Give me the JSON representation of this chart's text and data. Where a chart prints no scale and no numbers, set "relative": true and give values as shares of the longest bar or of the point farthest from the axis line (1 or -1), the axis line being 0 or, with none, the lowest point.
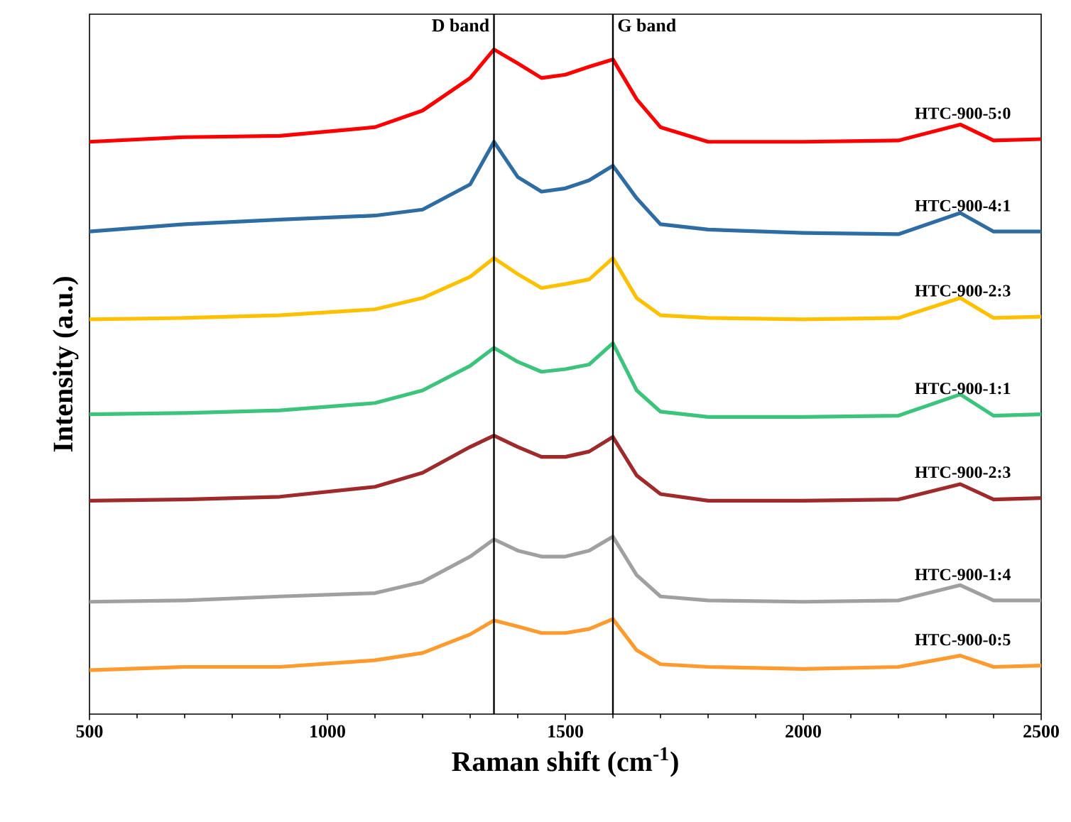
{
  "chart_data": {
    "type": "line",
    "xlabel": "Raman shift (cm$^{-1}$)",
    "ylabel": "Intensity (a.u.)",
    "relative": true,
    "x": [
      500,
      700,
      900,
      1100,
      1200,
      1300,
      1350,
      1400,
      1450,
      1500,
      1550,
      1600,
      1650,
      1700,
      1800,
      2000,
      2200,
      2330,
      2400,
      2500
    ],
    "xlim": [
      500,
      2500
    ],
    "xticks": [
      500,
      1000,
      1500,
      2000,
      2500
    ],
    "grid": false,
    "legend": false,
    "marker": "none",
    "line_style": "solid",
    "series": [
      {
        "name": "HTC-900-5:0",
        "color": "#ff0000",
        "values": [
          0.861,
          0.868,
          0.87,
          0.883,
          0.908,
          0.957,
          1.0,
          0.979,
          0.957,
          0.962,
          0.974,
          0.985,
          0.925,
          0.883,
          0.861,
          0.861,
          0.863,
          0.887,
          0.863,
          0.865
        ]
      },
      {
        "name": "HTC-900-4:1",
        "color": "#2e6ca4",
        "values": [
          0.726,
          0.737,
          0.744,
          0.75,
          0.759,
          0.797,
          0.861,
          0.808,
          0.786,
          0.791,
          0.803,
          0.825,
          0.776,
          0.737,
          0.729,
          0.724,
          0.722,
          0.754,
          0.726,
          0.726
        ]
      },
      {
        "name": "HTC-900-2:3",
        "color": "#ffc000",
        "values": [
          0.594,
          0.596,
          0.6,
          0.609,
          0.626,
          0.658,
          0.686,
          0.662,
          0.641,
          0.647,
          0.654,
          0.686,
          0.626,
          0.6,
          0.596,
          0.594,
          0.596,
          0.626,
          0.596,
          0.598
        ]
      },
      {
        "name": "HTC-900-1:1",
        "color": "#3cc47c",
        "values": [
          0.451,
          0.453,
          0.457,
          0.468,
          0.487,
          0.524,
          0.551,
          0.53,
          0.515,
          0.519,
          0.526,
          0.558,
          0.487,
          0.455,
          0.447,
          0.447,
          0.449,
          0.481,
          0.449,
          0.451
        ]
      },
      {
        "name": "HTC-900-2:3",
        "color": "#9e2a2b",
        "values": [
          0.321,
          0.323,
          0.327,
          0.342,
          0.363,
          0.402,
          0.419,
          0.402,
          0.387,
          0.387,
          0.395,
          0.417,
          0.359,
          0.331,
          0.321,
          0.321,
          0.323,
          0.346,
          0.323,
          0.325
        ]
      },
      {
        "name": "HTC-900-1:4",
        "color": "#a0a0a0",
        "values": [
          0.169,
          0.171,
          0.177,
          0.182,
          0.199,
          0.237,
          0.263,
          0.246,
          0.237,
          0.237,
          0.246,
          0.267,
          0.209,
          0.177,
          0.171,
          0.169,
          0.171,
          0.194,
          0.171,
          0.171
        ]
      },
      {
        "name": "HTC-900-0:5",
        "color": "#ff9a2e",
        "values": [
          0.066,
          0.071,
          0.071,
          0.081,
          0.092,
          0.12,
          0.141,
          0.132,
          0.122,
          0.122,
          0.128,
          0.143,
          0.096,
          0.075,
          0.071,
          0.068,
          0.071,
          0.088,
          0.071,
          0.073
        ]
      }
    ],
    "ref_lines": [
      {
        "axis": "x",
        "value": 1350,
        "label": "D band",
        "color": "#000000",
        "line_style": "solid"
      },
      {
        "axis": "x",
        "value": 1600,
        "label": "G band",
        "color": "#000000",
        "line_style": "solid"
      }
    ]
  }
}
